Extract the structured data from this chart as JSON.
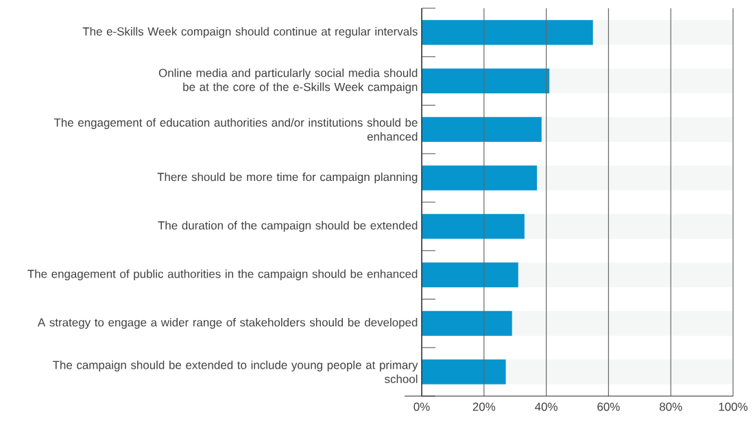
{
  "chart_data": {
    "type": "bar",
    "orientation": "horizontal",
    "stacked": true,
    "grid": "x",
    "categories": [
      "The e-Skills Week compaign should continue at regular intervals",
      "Online media and particularly social media should be at the core of the e-Skills Week campaign",
      "The engagement of education authorities and/or institutions should be enhanced",
      "There should be more time for campaign planning",
      "The duration of the campaign should be extended",
      "The engagement of public authorities in the campaign should be enhanced",
      "A strategy to engage a wider range of stakeholders should be developed",
      "The campaign should be extended to include young people at primary school"
    ],
    "series": [
      {
        "color": "#0795cd",
        "values": [
          55,
          41,
          38.5,
          37,
          33,
          31,
          29,
          27
        ]
      },
      {
        "color": "#f5f7f7",
        "values": [
          45,
          59,
          61.5,
          63,
          67,
          69,
          71,
          73
        ]
      }
    ],
    "xlim": [
      0,
      100
    ],
    "xticks": [
      {
        "value": 0,
        "label": "0%"
      },
      {
        "value": 20,
        "label": "20%"
      },
      {
        "value": 40,
        "label": "40%"
      },
      {
        "value": 60,
        "label": "60%"
      },
      {
        "value": 80,
        "label": "80%"
      },
      {
        "value": 100,
        "label": "100%"
      }
    ]
  }
}
